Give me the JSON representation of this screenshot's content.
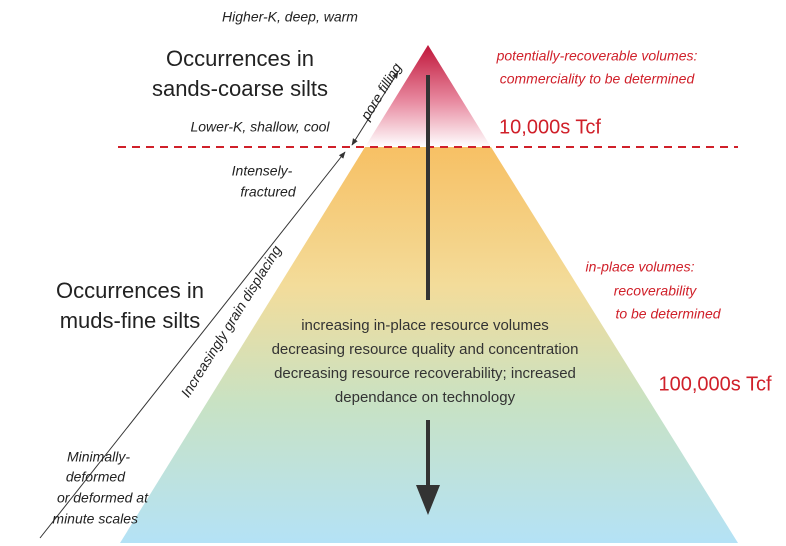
{
  "top_label": "Higher-K, deep, warm",
  "upper_zone": {
    "title": [
      "Occurrences in",
      "sands-coarse silts"
    ],
    "edge_label": "pore filling",
    "bottom_label": "Lower-K, shallow, cool",
    "note": [
      "potentially-recoverable volumes:",
      "commerciality to be determined"
    ],
    "volume": "10,000s Tcf"
  },
  "lower_zone": {
    "fracture_label": [
      "Intensely-",
      "fractured"
    ],
    "title": [
      "Occurrences in",
      "muds-fine silts"
    ],
    "edge_label": "Increasingly grain displacing",
    "note": [
      "in-place volumes:",
      "recoverability",
      "to be determined"
    ],
    "volume": "100,000s Tcf",
    "base_label": [
      "Minimally-",
      "deformed",
      "or deformed at",
      "minute scales"
    ]
  },
  "center_text": [
    "increasing in-place resource volumes",
    "decreasing resource quality and concentration",
    "decreasing resource recoverability;  increased",
    "dependance on technology"
  ]
}
